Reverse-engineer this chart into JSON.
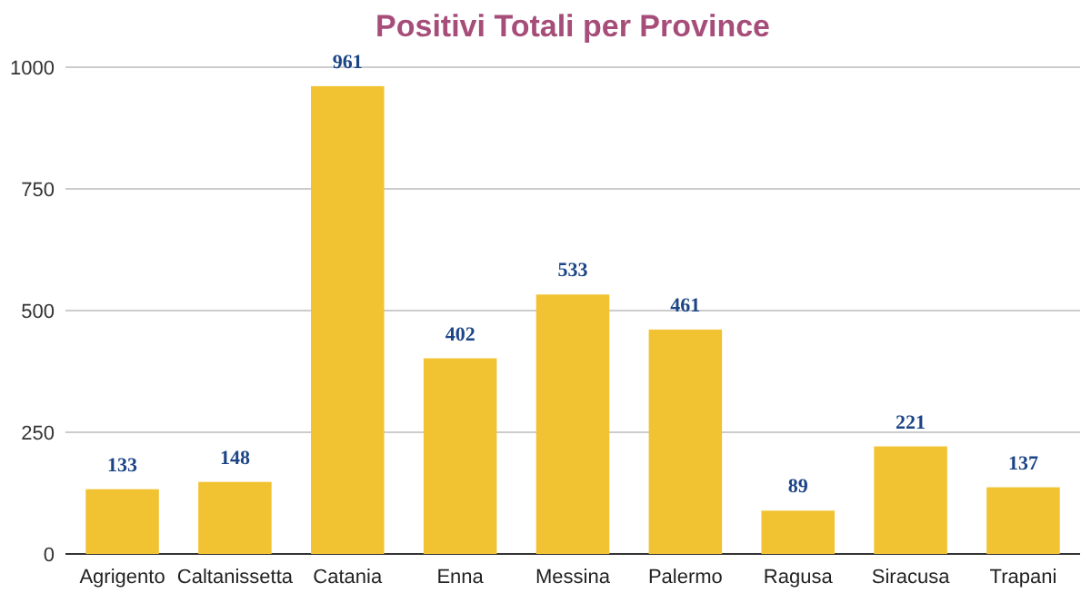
{
  "chart_data": {
    "type": "bar",
    "title": "Positivi Totali per Province",
    "categories": [
      "Agrigento",
      "Caltanissetta",
      "Catania",
      "Enna",
      "Messina",
      "Palermo",
      "Ragusa",
      "Siracusa",
      "Trapani"
    ],
    "values": [
      133,
      148,
      961,
      402,
      533,
      461,
      89,
      221,
      137
    ],
    "color": "#f1c232",
    "ylim": [
      0,
      1000
    ],
    "yticks": [
      0,
      250,
      500,
      750,
      1000
    ],
    "grid": true,
    "data_labels": true
  }
}
